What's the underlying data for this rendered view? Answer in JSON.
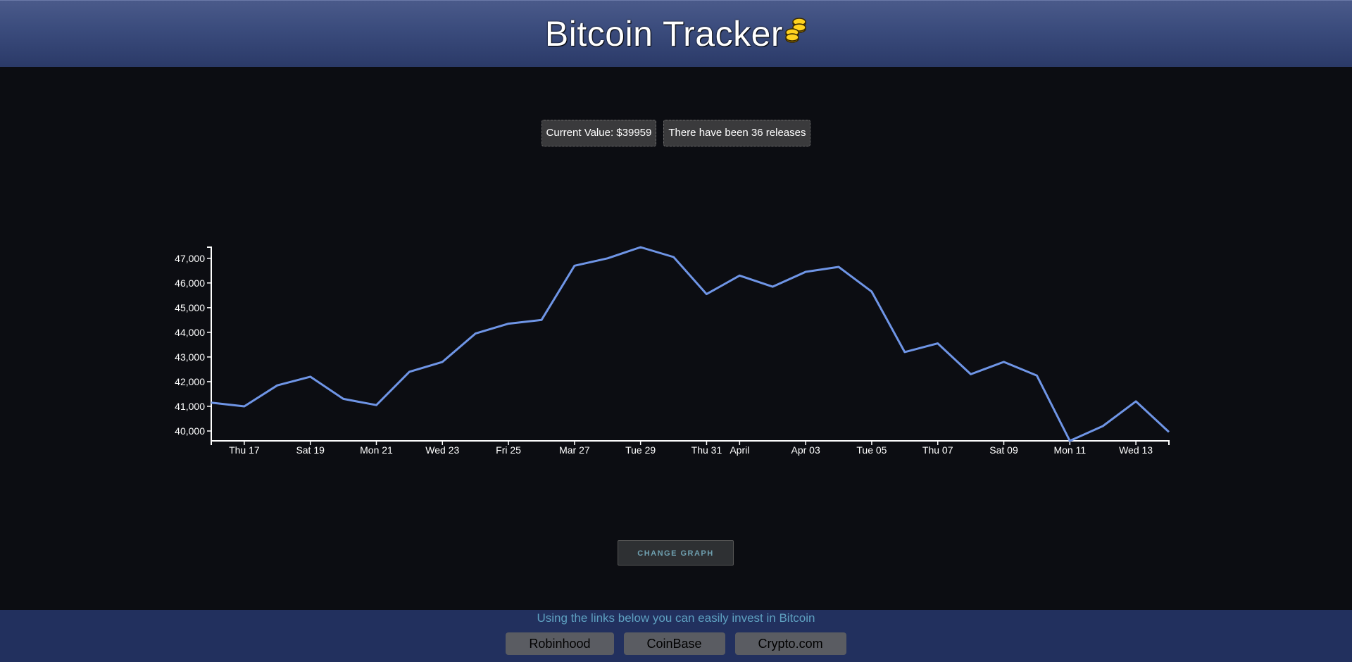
{
  "header": {
    "title": "Bitcoin Tracker",
    "coin_icon": "coins-icon"
  },
  "stats": {
    "current_value": "Current Value: $39959",
    "releases": "There have been 36 releases"
  },
  "chart_data": {
    "type": "line",
    "title": "",
    "xlabel": "",
    "ylabel": "",
    "color": "#6f95e6",
    "ylim": [
      39600,
      47450
    ],
    "y_ticks": [
      40000,
      41000,
      42000,
      43000,
      44000,
      45000,
      46000,
      47000
    ],
    "y_tick_labels": [
      "40,000",
      "41,000",
      "42,000",
      "43,000",
      "44,000",
      "45,000",
      "46,000",
      "47,000"
    ],
    "x_ticks": [
      {
        "label": "Thu 17",
        "index": 1
      },
      {
        "label": "Sat 19",
        "index": 3
      },
      {
        "label": "Mon 21",
        "index": 5
      },
      {
        "label": "Wed 23",
        "index": 7
      },
      {
        "label": "Fri 25",
        "index": 9
      },
      {
        "label": "Mar 27",
        "index": 11
      },
      {
        "label": "Tue 29",
        "index": 13
      },
      {
        "label": "Thu 31",
        "index": 15
      },
      {
        "label": "April",
        "index": 16
      },
      {
        "label": "Apr 03",
        "index": 18
      },
      {
        "label": "Tue 05",
        "index": 20
      },
      {
        "label": "Thu 07",
        "index": 22
      },
      {
        "label": "Sat 09",
        "index": 24
      },
      {
        "label": "Mon 11",
        "index": 26
      },
      {
        "label": "Wed 13",
        "index": 28
      }
    ],
    "values": [
      41150,
      41000,
      41850,
      42200,
      41300,
      41050,
      42400,
      42800,
      43950,
      44350,
      44500,
      46700,
      47000,
      47450,
      47050,
      45550,
      46300,
      45850,
      46450,
      46650,
      45650,
      43200,
      43550,
      42300,
      42800,
      42250,
      39600,
      40200,
      41200,
      39959
    ]
  },
  "controls": {
    "change_graph": "CHANGE GRAPH"
  },
  "footer": {
    "text": "Using the links below you can easily invest in Bitcoin",
    "links": [
      "Robinhood",
      "CoinBase",
      "Crypto.com"
    ]
  }
}
